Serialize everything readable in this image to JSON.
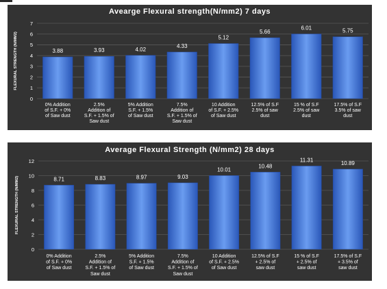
{
  "colors": {
    "panel_background": "#333333",
    "bar_fill": "#3a6fd8",
    "bar_highlight": "#6a9cf0",
    "text": "#ffffff",
    "gridline": "#585858"
  },
  "chart_data": [
    {
      "type": "bar",
      "title": "Avearge Flexural strength(N/mm2) 7 days",
      "xlabel": "",
      "ylabel": "FLEXURAL STRENGTH (N/MM2)",
      "ylim": [
        0,
        7
      ],
      "yticks": [
        0,
        1,
        2,
        3,
        4,
        5,
        6,
        7
      ],
      "grid": true,
      "categories": [
        [
          "0% Addition",
          "of S.F. + 0%",
          "of Saw dust"
        ],
        [
          "2.5%",
          "Addition of",
          "S.F. + 1.5% of",
          "Saw dust"
        ],
        [
          "5% Addition",
          "S.F. + 1.5%",
          "of Saw dust"
        ],
        [
          "7.5%",
          "Addition of",
          "S.F. + 1.5% of",
          "Saw dust"
        ],
        [
          "10 Addition",
          "of S.F. + 2.5%",
          "of Saw dust"
        ],
        [
          "12.5% of S.F",
          "2.5% of saw",
          "dust"
        ],
        [
          "15 % of S.F",
          "2.5% of saw",
          "dust"
        ],
        [
          "17.5% of S.F",
          "3.5% of saw",
          "dust"
        ]
      ],
      "values": [
        3.88,
        3.93,
        4.02,
        4.33,
        5.12,
        5.66,
        6.01,
        5.75
      ],
      "data_labels": [
        "3.88",
        "3.93",
        "4.02",
        "4.33",
        "5.12",
        "5.66",
        "6.01",
        "5.75"
      ]
    },
    {
      "type": "bar",
      "title": "Average Flexural Strength (N/mm2) 28 days",
      "xlabel": "",
      "ylabel": "FLEXURAL STRENGTH (N/MM2)",
      "ylim": [
        0,
        12
      ],
      "yticks": [
        0,
        2,
        4,
        6,
        8,
        10,
        12
      ],
      "grid": true,
      "categories": [
        [
          "0% Addition",
          "of S.F. + 0%",
          "of Saw dust"
        ],
        [
          "2.5%",
          "Addition of",
          "S.F. + 1.5% of",
          "Saw dust"
        ],
        [
          "5% Addition",
          "S.F. + 1.5%",
          "of Saw dust"
        ],
        [
          "7.5%",
          "Addition of",
          "S.F. + 1.5% of",
          "Saw dust"
        ],
        [
          "10 Addition",
          "of S.F. + 2.5%",
          "of Saw dust"
        ],
        [
          "12.5% of S.F",
          "+ 2.5% of",
          "saw dust"
        ],
        [
          "15 % of S.F",
          "+ 2.5% of",
          "saw dust"
        ],
        [
          "17.5% of S.F",
          "+ 3.5% of",
          "saw dust"
        ]
      ],
      "values": [
        8.71,
        8.83,
        8.97,
        9.03,
        10.01,
        10.48,
        11.31,
        10.89
      ],
      "data_labels": [
        "8.71",
        "8.83",
        "8.97",
        "9.03",
        "10.01",
        "10.48",
        "11.31",
        "10.89"
      ]
    }
  ]
}
